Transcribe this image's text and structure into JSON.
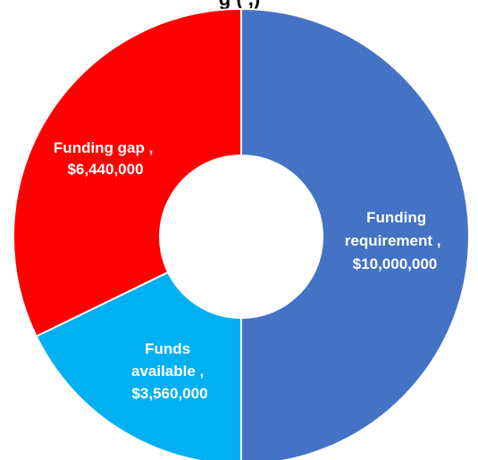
{
  "chart_data": {
    "type": "pie",
    "title": "g    (   ,)",
    "slices": [
      {
        "label": "Funding requirement ,",
        "value_text": "$10,000,000",
        "value": 10000000,
        "color": "#4472C4"
      },
      {
        "label": "Funds available ,",
        "value_text": "$3,560,000",
        "value": 3560000,
        "color": "#00B0F0"
      },
      {
        "label": "Funding gap ,",
        "value_text": "$6,440,000",
        "value": 6440000,
        "color": "#FF0000"
      }
    ]
  }
}
